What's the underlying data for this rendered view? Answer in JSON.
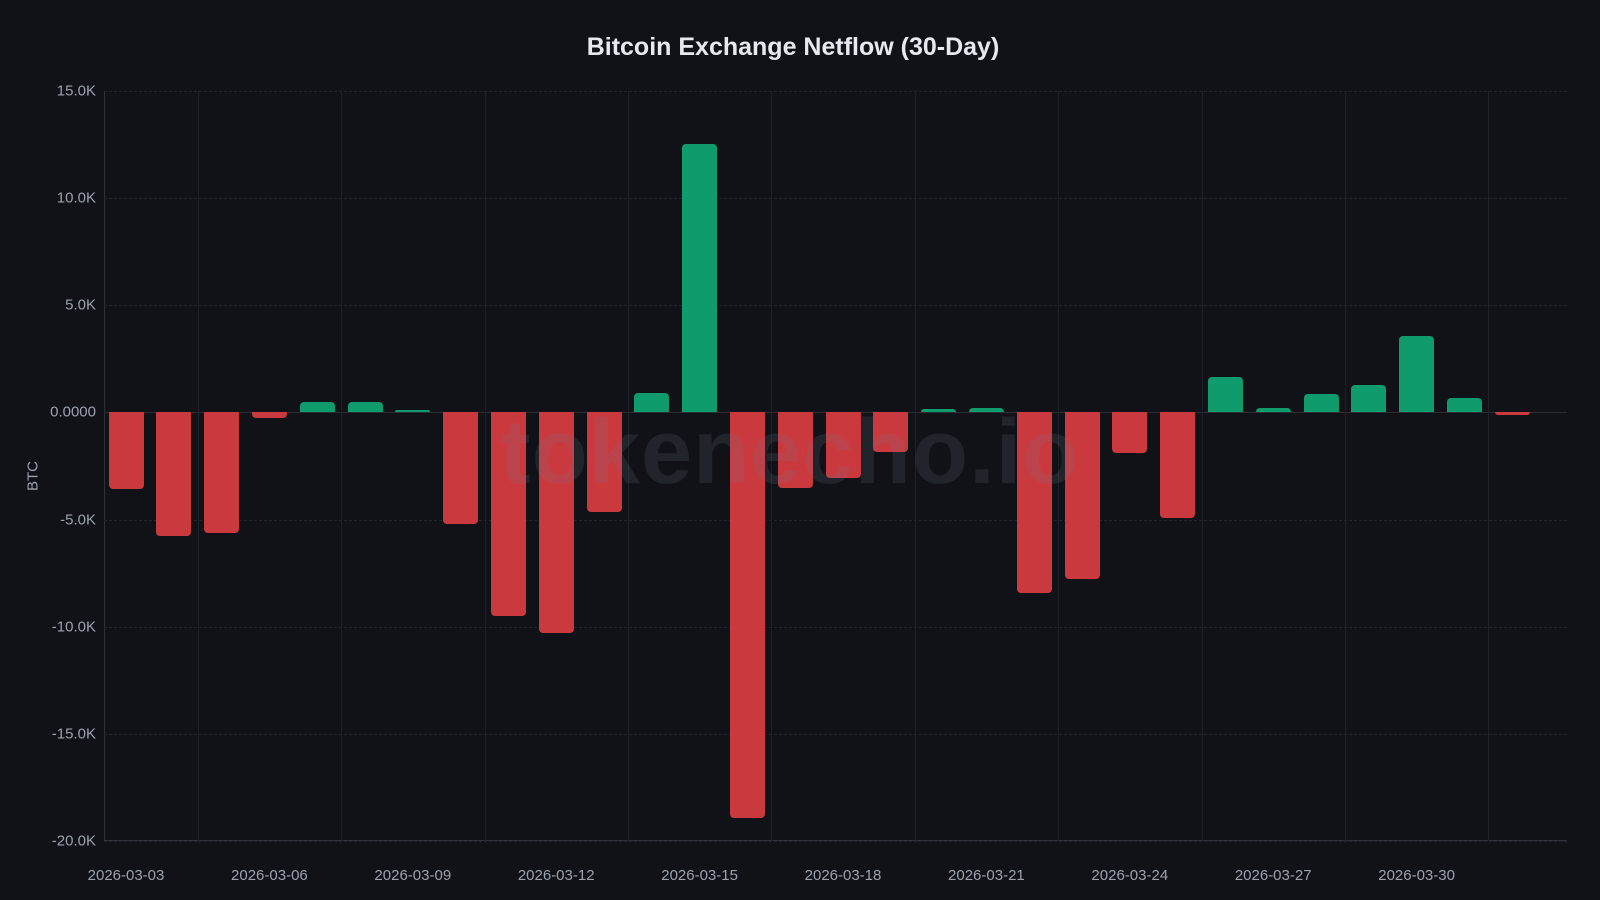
{
  "title": "Bitcoin Exchange Netflow (30-Day)",
  "watermark": "tokenecho.io",
  "colors": {
    "background": "#111217",
    "positive": "#0f9b6c",
    "negative": "#c9393e",
    "text": "#9ba2ad",
    "title": "#e6e9ef"
  },
  "y_axis": {
    "label": "BTC",
    "ticks": [
      "15.0K",
      "10.0K",
      "5.0K",
      "0.0000",
      "-5.0K",
      "-10.0K",
      "-15.0K",
      "-20.0K"
    ]
  },
  "x_axis": {
    "ticks": [
      "2026-03-03",
      "2026-03-06",
      "2026-03-09",
      "2026-03-12",
      "2026-03-15",
      "2026-03-18",
      "2026-03-21",
      "2026-03-24",
      "2026-03-27",
      "2026-03-30"
    ]
  },
  "chart_data": {
    "type": "bar",
    "title": "Bitcoin Exchange Netflow (30-Day)",
    "xlabel": "",
    "ylabel": "BTC",
    "ylim": [
      -20000,
      15000
    ],
    "grid": true,
    "legend": null,
    "categories": [
      "2026-03-03",
      "2026-03-04",
      "2026-03-05",
      "2026-03-06",
      "2026-03-07",
      "2026-03-08",
      "2026-03-09",
      "2026-03-10",
      "2026-03-11",
      "2026-03-12",
      "2026-03-13",
      "2026-03-14",
      "2026-03-15",
      "2026-03-16",
      "2026-03-17",
      "2026-03-18",
      "2026-03-19",
      "2026-03-20",
      "2026-03-21",
      "2026-03-22",
      "2026-03-23",
      "2026-03-24",
      "2026-03-25",
      "2026-03-26",
      "2026-03-27",
      "2026-03-28",
      "2026-03-29",
      "2026-03-30",
      "2026-03-31",
      "2026-04-01"
    ],
    "values": [
      -3570,
      -5770,
      -5630,
      -260,
      490,
      490,
      100,
      -5200,
      -9500,
      -10300,
      -4650,
      900,
      12550,
      -18950,
      -3530,
      -3060,
      -1850,
      170,
      200,
      -8430,
      -7780,
      -1900,
      -4930,
      1650,
      200,
      860,
      1280,
      3570,
      680,
      -120
    ],
    "color_rule": "green for positive (inflow), red for negative (outflow)"
  }
}
